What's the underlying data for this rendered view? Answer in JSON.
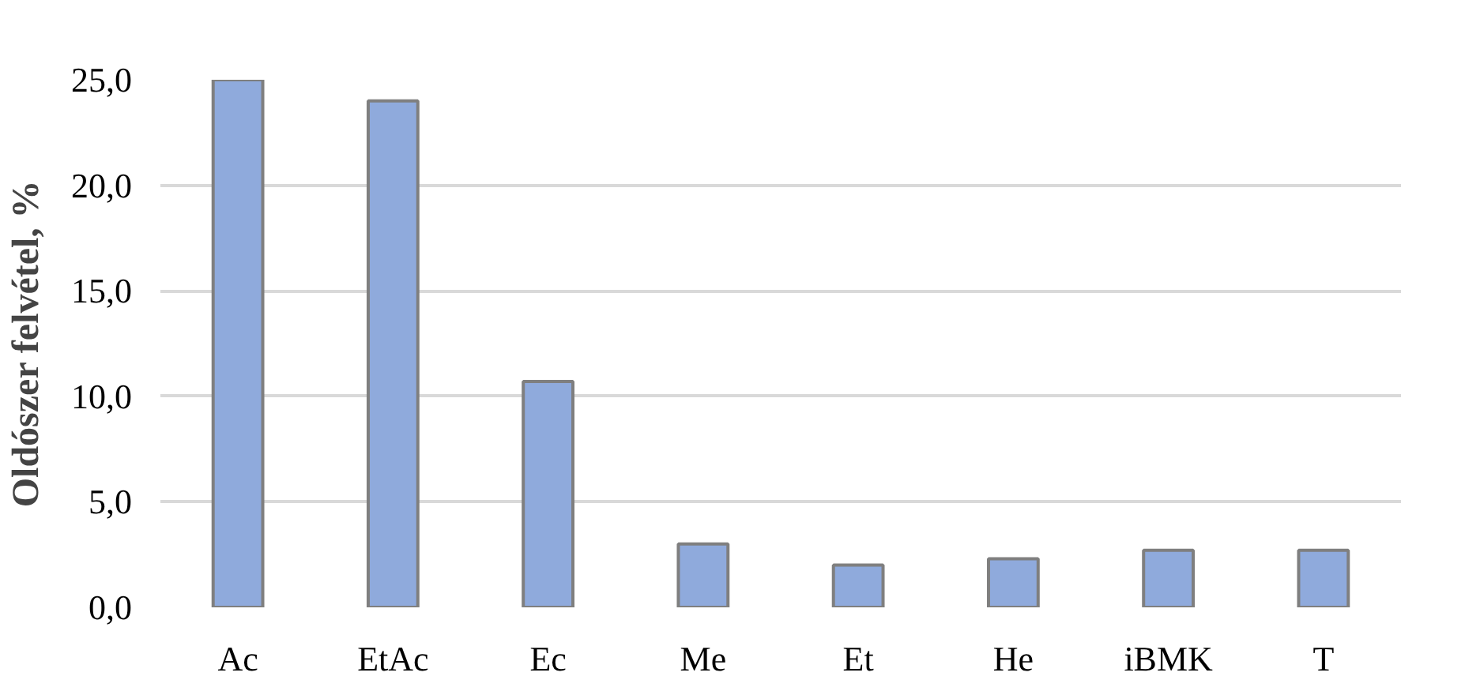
{
  "chart_data": {
    "type": "bar",
    "ylabel": "Oldószer felvétel, %",
    "categories": [
      "Ac",
      "EtAc",
      "Ec",
      "Me",
      "Et",
      "He",
      "iBMK",
      "T"
    ],
    "values": [
      25.0,
      24.0,
      10.7,
      3.0,
      2.0,
      2.3,
      2.7,
      2.7
    ],
    "color": "#8faadc",
    "ylim": [
      0,
      25
    ],
    "yticks": [
      {
        "value": 0,
        "label": "0,0"
      },
      {
        "value": 5,
        "label": "5,0"
      },
      {
        "value": 10,
        "label": "10,0"
      },
      {
        "value": 15,
        "label": "15,0"
      },
      {
        "value": 20,
        "label": "20,0"
      },
      {
        "value": 25,
        "label": "25,0"
      }
    ],
    "grid": "y"
  }
}
